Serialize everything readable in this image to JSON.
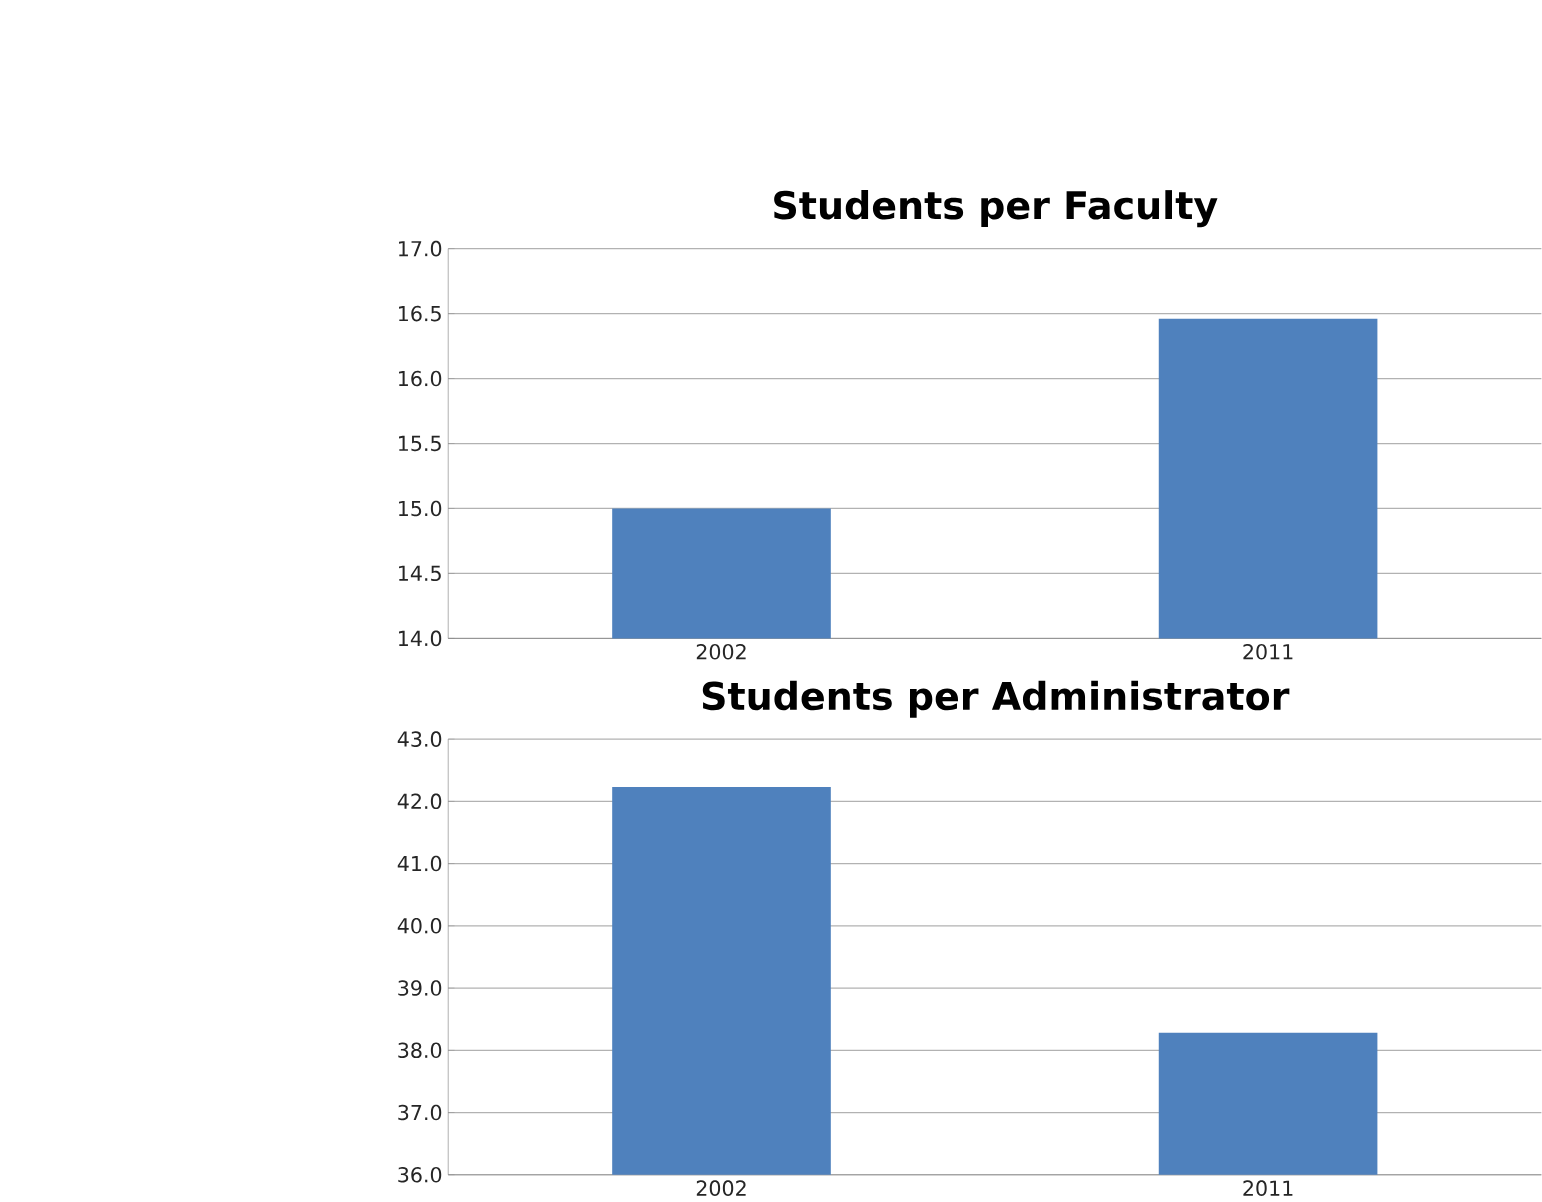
{
  "chart_data": [
    {
      "type": "bar",
      "title": "Students per Faculty",
      "categories": [
        "2002",
        "2011"
      ],
      "values": [
        15.0,
        16.46
      ],
      "color": "#4f81bd",
      "ylim": [
        14,
        17
      ],
      "yticks": [
        {
          "value": 14,
          "label": "14.0"
        },
        {
          "value": 14.5,
          "label": "14.5"
        },
        {
          "value": 15,
          "label": "15.0"
        },
        {
          "value": 15.5,
          "label": "15.5"
        },
        {
          "value": 16,
          "label": "16.0"
        },
        {
          "value": 16.5,
          "label": "16.5"
        },
        {
          "value": 17,
          "label": "17.0"
        }
      ],
      "grid": "y"
    },
    {
      "type": "bar",
      "title": "Students per Administrator",
      "categories": [
        "2002",
        "2011"
      ],
      "values": [
        42.23,
        38.28
      ],
      "color": "#4f81bd",
      "ylim": [
        36,
        43
      ],
      "yticks": [
        {
          "value": 36,
          "label": "36.0"
        },
        {
          "value": 37,
          "label": "37.0"
        },
        {
          "value": 38,
          "label": "38.0"
        },
        {
          "value": 39,
          "label": "39.0"
        },
        {
          "value": 40,
          "label": "40.0"
        },
        {
          "value": 41,
          "label": "41.0"
        },
        {
          "value": 42,
          "label": "42.0"
        },
        {
          "value": 43,
          "label": "43.0"
        }
      ],
      "grid": "y"
    }
  ]
}
